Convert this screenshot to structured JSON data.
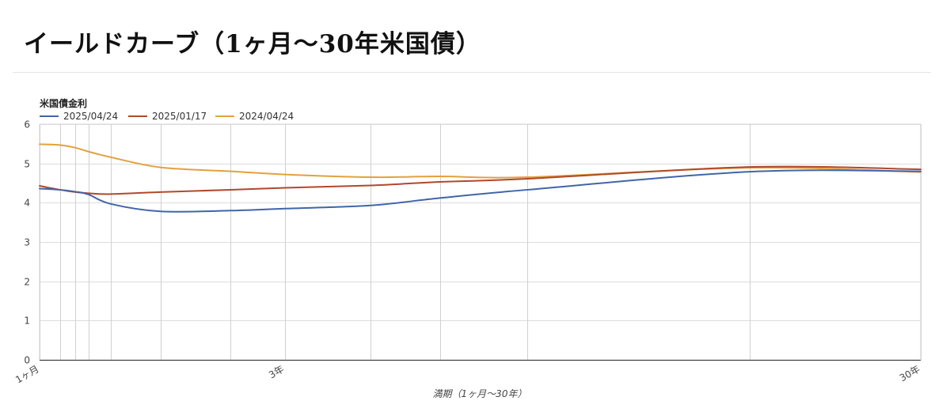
{
  "page": {
    "title": "イールドカーブ（1ヶ月〜30年米国債）"
  },
  "chart_data": {
    "type": "line",
    "title": "米国債金利",
    "xlabel": "満期（1ヶ月〜30年）",
    "ylabel": "",
    "ylim": [
      0,
      6
    ],
    "yticks": [
      0,
      1,
      2,
      3,
      4,
      5,
      6
    ],
    "grid": true,
    "legend": "top-left",
    "x_unit": "years",
    "xlim": [
      0.0833,
      30
    ],
    "x": [
      0.0833,
      0.1667,
      0.25,
      0.3333,
      0.5,
      1,
      2,
      3,
      5,
      7,
      10,
      20,
      30
    ],
    "xtick_labels": [
      {
        "x": 0.0833,
        "label": "1ヶ月"
      },
      {
        "x": 3,
        "label": "3年"
      },
      {
        "x": 30,
        "label": "30年"
      }
    ],
    "series": [
      {
        "name": "2025/04/24",
        "color": "#4065a8",
        "values": [
          4.36,
          4.33,
          4.28,
          4.21,
          3.97,
          3.78,
          3.8,
          3.85,
          3.93,
          4.12,
          4.33,
          4.79,
          4.8
        ]
      },
      {
        "name": "2025/01/17",
        "color": "#b0492a",
        "values": [
          4.43,
          4.33,
          4.27,
          4.24,
          4.22,
          4.27,
          4.33,
          4.38,
          4.44,
          4.53,
          4.61,
          4.91,
          4.85
        ]
      },
      {
        "name": "2024/04/24",
        "color": "#e3a13d",
        "values": [
          5.49,
          5.47,
          5.4,
          5.3,
          5.16,
          4.9,
          4.8,
          4.72,
          4.65,
          4.67,
          4.65,
          4.89,
          4.78
        ]
      }
    ]
  }
}
